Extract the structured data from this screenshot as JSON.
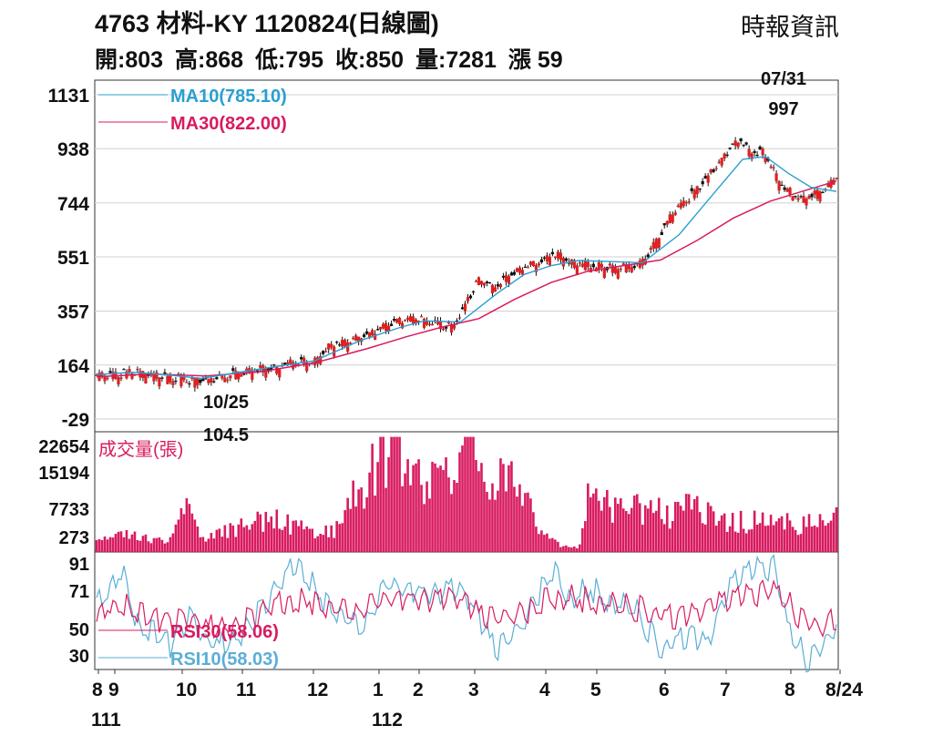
{
  "header": {
    "title": "4763  材料-KY 1120824(日線圖)",
    "source": "時報資訊",
    "ohlc": {
      "open": "開:803",
      "high": "高:868",
      "low": "低:795",
      "close": "收:850",
      "volume": "量:7281",
      "change": "漲 59"
    }
  },
  "chart_data": [
    {
      "type": "candlestick",
      "panel": "price",
      "y_ticks": [
        1131,
        938,
        744,
        551,
        357,
        164,
        -29
      ],
      "ylim": [
        -29,
        1131
      ],
      "grid": true,
      "legend_placement": "top-left",
      "legend": [
        {
          "label": "MA10(785.10)",
          "color": "#2a9fd0"
        },
        {
          "label": "MA30(822.00)",
          "color": "#d81b60"
        }
      ],
      "annotations": [
        {
          "date": "07/31",
          "value": "997",
          "text_top": "07/31",
          "text_bottom": "997"
        },
        {
          "date": "10/25",
          "value": "104.5",
          "text_top": "10/25",
          "text_bottom": "104.5"
        }
      ],
      "close_keypoints": [
        {
          "x": 0,
          "y": 135
        },
        {
          "x": 20,
          "y": 138
        },
        {
          "x": 50,
          "y": 148
        },
        {
          "x": 95,
          "y": 118
        },
        {
          "x": 115,
          "y": 114
        },
        {
          "x": 140,
          "y": 128
        },
        {
          "x": 165,
          "y": 152
        },
        {
          "x": 195,
          "y": 162
        },
        {
          "x": 215,
          "y": 182
        },
        {
          "x": 240,
          "y": 188
        },
        {
          "x": 260,
          "y": 250
        },
        {
          "x": 285,
          "y": 265
        },
        {
          "x": 303,
          "y": 290
        },
        {
          "x": 335,
          "y": 330
        },
        {
          "x": 350,
          "y": 343
        },
        {
          "x": 370,
          "y": 320
        },
        {
          "x": 392,
          "y": 310
        },
        {
          "x": 400,
          "y": 350
        },
        {
          "x": 420,
          "y": 480
        },
        {
          "x": 440,
          "y": 450
        },
        {
          "x": 455,
          "y": 500
        },
        {
          "x": 475,
          "y": 530
        },
        {
          "x": 490,
          "y": 540
        },
        {
          "x": 500,
          "y": 575
        },
        {
          "x": 520,
          "y": 545
        },
        {
          "x": 540,
          "y": 535
        },
        {
          "x": 560,
          "y": 520
        },
        {
          "x": 580,
          "y": 525
        },
        {
          "x": 595,
          "y": 525
        },
        {
          "x": 605,
          "y": 560
        },
        {
          "x": 630,
          "y": 700
        },
        {
          "x": 660,
          "y": 800
        },
        {
          "x": 680,
          "y": 880
        },
        {
          "x": 700,
          "y": 960
        },
        {
          "x": 710,
          "y": 975
        },
        {
          "x": 720,
          "y": 930
        },
        {
          "x": 733,
          "y": 940
        },
        {
          "x": 745,
          "y": 860
        },
        {
          "x": 758,
          "y": 800
        },
        {
          "x": 772,
          "y": 770
        },
        {
          "x": 790,
          "y": 790
        },
        {
          "x": 800,
          "y": 803
        },
        {
          "x": 813,
          "y": 850
        }
      ],
      "ma10_keypoints": [
        {
          "x": 0,
          "y": 130
        },
        {
          "x": 40,
          "y": 138
        },
        {
          "x": 80,
          "y": 128
        },
        {
          "x": 115,
          "y": 116
        },
        {
          "x": 160,
          "y": 140
        },
        {
          "x": 200,
          "y": 160
        },
        {
          "x": 240,
          "y": 180
        },
        {
          "x": 290,
          "y": 252
        },
        {
          "x": 335,
          "y": 300
        },
        {
          "x": 360,
          "y": 322
        },
        {
          "x": 400,
          "y": 318
        },
        {
          "x": 440,
          "y": 420
        },
        {
          "x": 470,
          "y": 488
        },
        {
          "x": 500,
          "y": 520
        },
        {
          "x": 530,
          "y": 538
        },
        {
          "x": 560,
          "y": 535
        },
        {
          "x": 600,
          "y": 530
        },
        {
          "x": 640,
          "y": 630
        },
        {
          "x": 680,
          "y": 785
        },
        {
          "x": 710,
          "y": 900
        },
        {
          "x": 735,
          "y": 910
        },
        {
          "x": 760,
          "y": 850
        },
        {
          "x": 785,
          "y": 800
        },
        {
          "x": 813,
          "y": 785.1
        }
      ],
      "ma30_keypoints": [
        {
          "x": 0,
          "y": 122
        },
        {
          "x": 60,
          "y": 132
        },
        {
          "x": 120,
          "y": 125
        },
        {
          "x": 180,
          "y": 140
        },
        {
          "x": 240,
          "y": 172
        },
        {
          "x": 300,
          "y": 225
        },
        {
          "x": 340,
          "y": 265
        },
        {
          "x": 380,
          "y": 300
        },
        {
          "x": 420,
          "y": 330
        },
        {
          "x": 460,
          "y": 400
        },
        {
          "x": 500,
          "y": 460
        },
        {
          "x": 540,
          "y": 500
        },
        {
          "x": 580,
          "y": 520
        },
        {
          "x": 620,
          "y": 540
        },
        {
          "x": 660,
          "y": 610
        },
        {
          "x": 700,
          "y": 690
        },
        {
          "x": 740,
          "y": 750
        },
        {
          "x": 780,
          "y": 790
        },
        {
          "x": 813,
          "y": 822
        }
      ]
    },
    {
      "type": "bar",
      "panel": "volume",
      "y_ticks": [
        22654,
        15194,
        7733,
        273
      ],
      "ylim": [
        273,
        22654
      ],
      "legend": [
        {
          "label": "成交量(張)",
          "color": "#d81b60"
        }
      ],
      "volume_keypoints": [
        {
          "x": 0,
          "y": 1800
        },
        {
          "x": 40,
          "y": 3000
        },
        {
          "x": 80,
          "y": 1500
        },
        {
          "x": 98,
          "y": 8000
        },
        {
          "x": 120,
          "y": 2500
        },
        {
          "x": 165,
          "y": 5000
        },
        {
          "x": 200,
          "y": 6500
        },
        {
          "x": 240,
          "y": 3500
        },
        {
          "x": 260,
          "y": 3500
        },
        {
          "x": 310,
          "y": 20000
        },
        {
          "x": 330,
          "y": 22000
        },
        {
          "x": 350,
          "y": 16000
        },
        {
          "x": 380,
          "y": 12000
        },
        {
          "x": 410,
          "y": 23000
        },
        {
          "x": 440,
          "y": 16000
        },
        {
          "x": 470,
          "y": 12000
        },
        {
          "x": 490,
          "y": 3500
        },
        {
          "x": 510,
          "y": 700
        },
        {
          "x": 530,
          "y": 300
        },
        {
          "x": 540,
          "y": 9500
        },
        {
          "x": 580,
          "y": 9000
        },
        {
          "x": 620,
          "y": 7500
        },
        {
          "x": 660,
          "y": 8500
        },
        {
          "x": 700,
          "y": 6000
        },
        {
          "x": 740,
          "y": 5500
        },
        {
          "x": 780,
          "y": 5000
        },
        {
          "x": 800,
          "y": 5800
        },
        {
          "x": 813,
          "y": 7281
        }
      ]
    },
    {
      "type": "line",
      "panel": "rsi",
      "y_ticks": [
        91,
        71,
        50,
        30
      ],
      "ylim": [
        20,
        100
      ],
      "legend": [
        {
          "label": "RSI30(58.06)",
          "color": "#d81b60"
        },
        {
          "label": "RSI10(58.03)",
          "color": "#5aaed6"
        }
      ],
      "rsi10_keypoints": [
        {
          "x": 0,
          "y": 70
        },
        {
          "x": 20,
          "y": 86
        },
        {
          "x": 30,
          "y": 92
        },
        {
          "x": 45,
          "y": 55
        },
        {
          "x": 65,
          "y": 50
        },
        {
          "x": 82,
          "y": 40
        },
        {
          "x": 100,
          "y": 60
        },
        {
          "x": 120,
          "y": 40
        },
        {
          "x": 150,
          "y": 42
        },
        {
          "x": 175,
          "y": 60
        },
        {
          "x": 200,
          "y": 82
        },
        {
          "x": 220,
          "y": 100
        },
        {
          "x": 245,
          "y": 75
        },
        {
          "x": 265,
          "y": 65
        },
        {
          "x": 290,
          "y": 50
        },
        {
          "x": 320,
          "y": 85
        },
        {
          "x": 345,
          "y": 80
        },
        {
          "x": 370,
          "y": 76
        },
        {
          "x": 390,
          "y": 80
        },
        {
          "x": 410,
          "y": 72
        },
        {
          "x": 440,
          "y": 35
        },
        {
          "x": 470,
          "y": 56
        },
        {
          "x": 500,
          "y": 95
        },
        {
          "x": 520,
          "y": 75
        },
        {
          "x": 545,
          "y": 80
        },
        {
          "x": 570,
          "y": 70
        },
        {
          "x": 590,
          "y": 68
        },
        {
          "x": 620,
          "y": 38
        },
        {
          "x": 650,
          "y": 46
        },
        {
          "x": 670,
          "y": 40
        },
        {
          "x": 700,
          "y": 85
        },
        {
          "x": 725,
          "y": 94
        },
        {
          "x": 745,
          "y": 96
        },
        {
          "x": 760,
          "y": 52
        },
        {
          "x": 780,
          "y": 30
        },
        {
          "x": 800,
          "y": 42
        },
        {
          "x": 813,
          "y": 58.03
        }
      ],
      "rsi30_keypoints": [
        {
          "x": 0,
          "y": 63
        },
        {
          "x": 30,
          "y": 70
        },
        {
          "x": 60,
          "y": 60
        },
        {
          "x": 100,
          "y": 55
        },
        {
          "x": 150,
          "y": 52
        },
        {
          "x": 200,
          "y": 70
        },
        {
          "x": 240,
          "y": 72
        },
        {
          "x": 280,
          "y": 62
        },
        {
          "x": 320,
          "y": 75
        },
        {
          "x": 360,
          "y": 72
        },
        {
          "x": 400,
          "y": 73
        },
        {
          "x": 430,
          "y": 58
        },
        {
          "x": 470,
          "y": 62
        },
        {
          "x": 500,
          "y": 76
        },
        {
          "x": 530,
          "y": 73
        },
        {
          "x": 560,
          "y": 71
        },
        {
          "x": 600,
          "y": 66
        },
        {
          "x": 640,
          "y": 58
        },
        {
          "x": 680,
          "y": 68
        },
        {
          "x": 720,
          "y": 76
        },
        {
          "x": 745,
          "y": 80
        },
        {
          "x": 770,
          "y": 63
        },
        {
          "x": 790,
          "y": 55
        },
        {
          "x": 813,
          "y": 58.06
        }
      ]
    }
  ],
  "x_axis": {
    "month_labels": [
      "8",
      "9",
      "10",
      "11",
      "12",
      "1",
      "2",
      "3",
      "4",
      "5",
      "6",
      "7",
      "8",
      "8/24"
    ],
    "year_labels": [
      "111",
      "112"
    ]
  }
}
